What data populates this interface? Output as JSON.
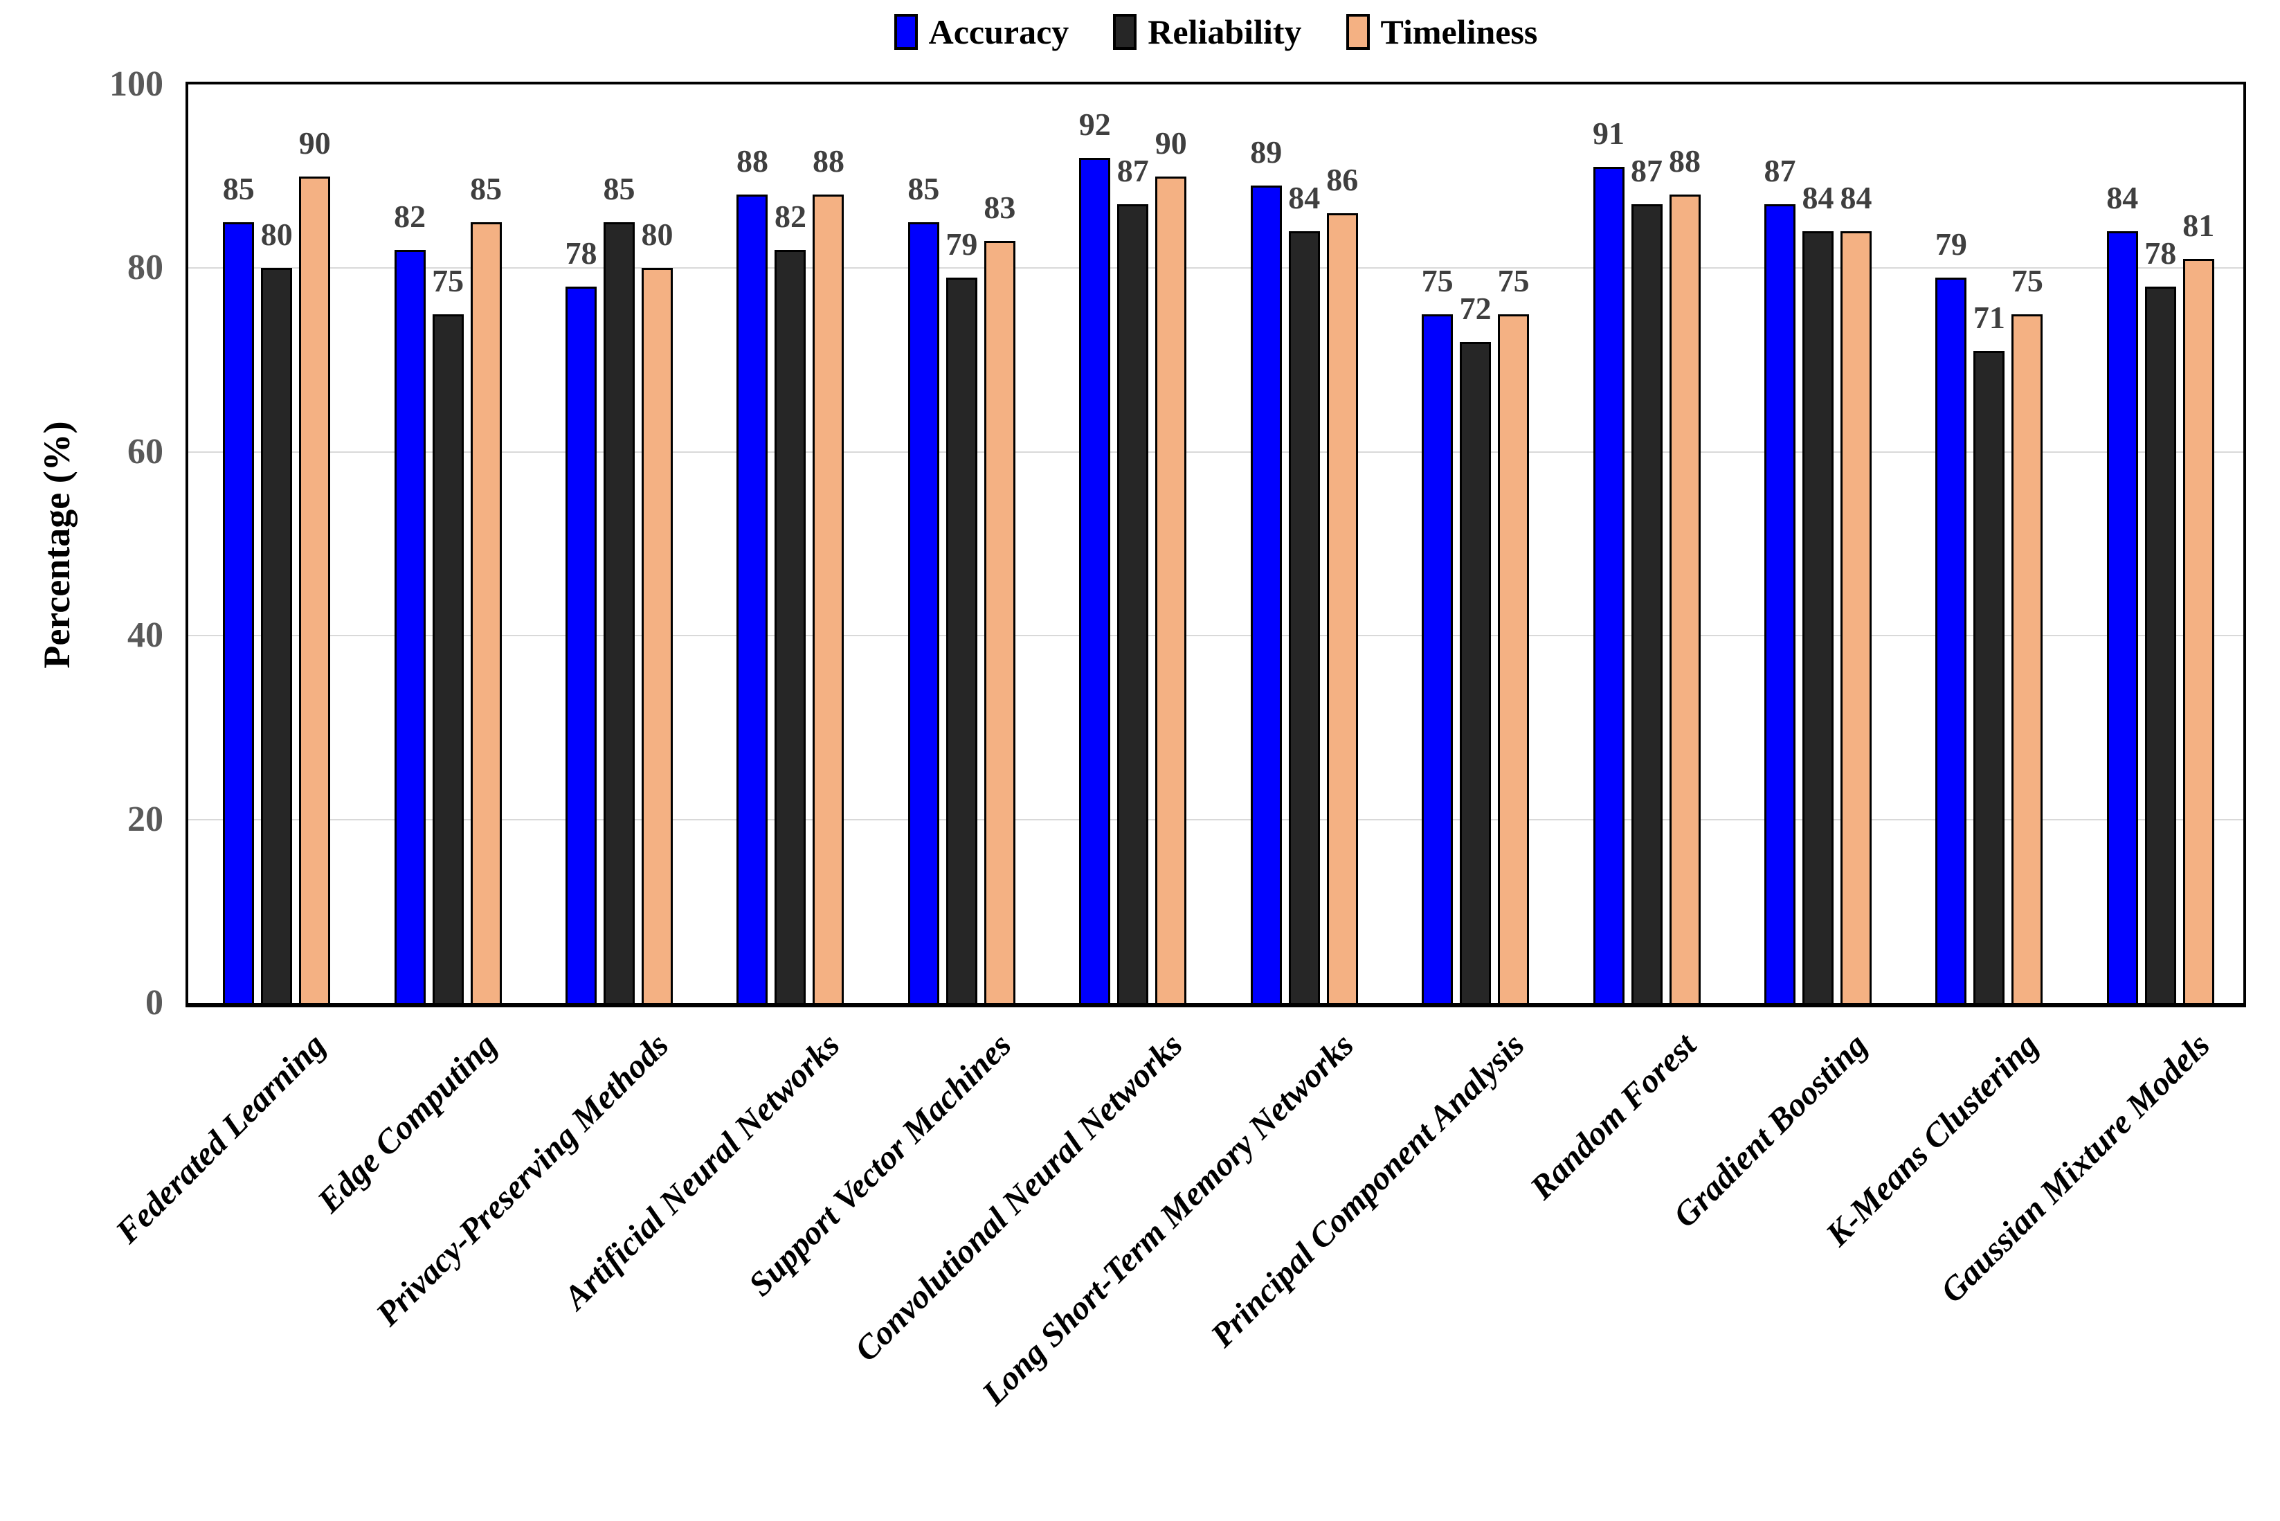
{
  "chart_data": {
    "type": "bar",
    "title": "",
    "ylabel": "Percentage (%)",
    "xlabel": "",
    "ylim": [
      0,
      100
    ],
    "yticks": [
      0,
      20,
      40,
      60,
      80,
      100
    ],
    "grid": true,
    "legend_position": "top-center",
    "categories": [
      "Federated Learning",
      "Edge Computing",
      "Privacy-Preserving Methods",
      "Artificial Neural Networks",
      "Support Vector Machines",
      "Convolutional Neural Networks",
      "Long Short-Term Memory Networks",
      "Principal Component Analysis",
      "Random Forest",
      "Gradient Boosting",
      "K-Means Clustering",
      "Gaussian Mixture Models"
    ],
    "series": [
      {
        "name": "Accuracy",
        "color": "#0000fe",
        "values": [
          85,
          82,
          78,
          88,
          85,
          92,
          89,
          75,
          91,
          87,
          79,
          84
        ]
      },
      {
        "name": "Reliability",
        "color": "#262626",
        "values": [
          80,
          75,
          85,
          82,
          79,
          87,
          84,
          72,
          87,
          84,
          71,
          78
        ]
      },
      {
        "name": "Timeliness",
        "color": "#f4b183",
        "values": [
          90,
          85,
          80,
          88,
          83,
          90,
          86,
          75,
          88,
          84,
          75,
          81
        ]
      }
    ],
    "colors": {
      "bar_border": "#000000",
      "gridline": "#d9d9d9",
      "tick_label": "#595959",
      "value_label": "#3f3f3f",
      "axis": "#000000"
    }
  }
}
